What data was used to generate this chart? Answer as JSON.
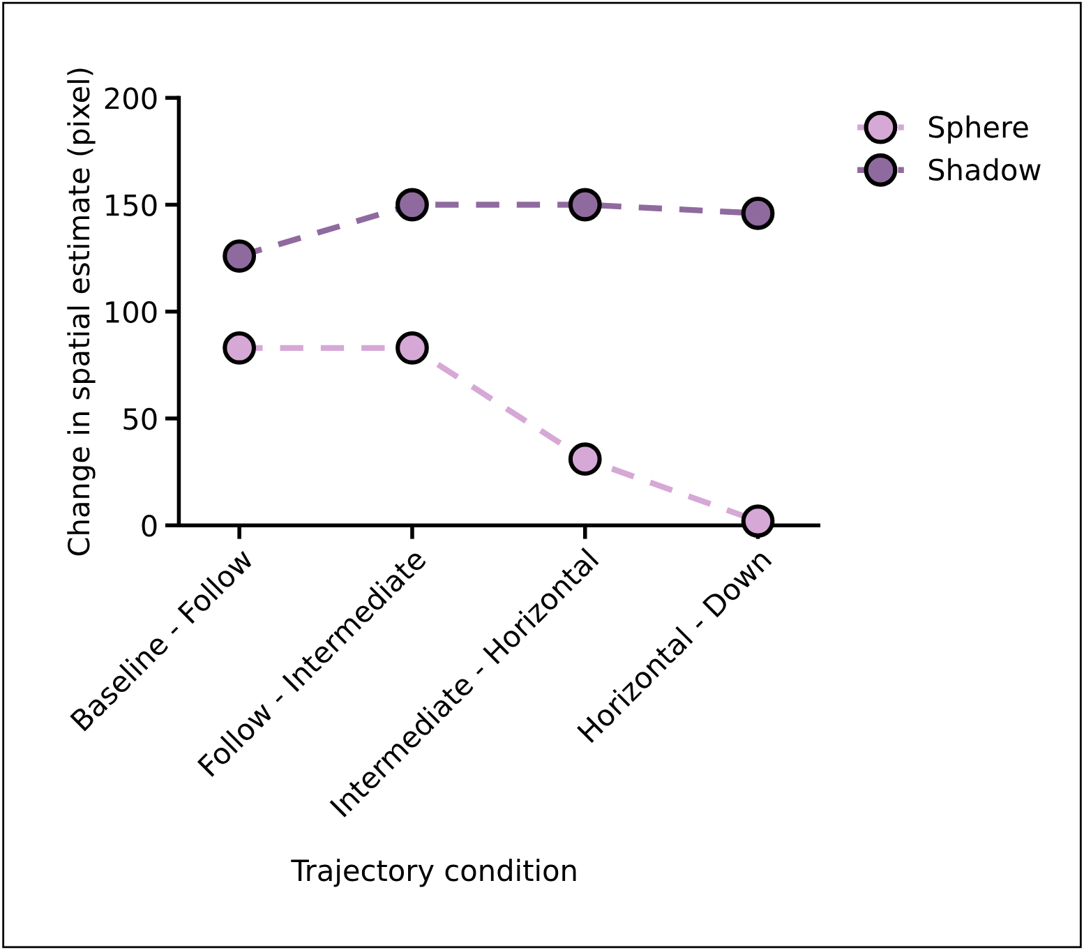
{
  "chart_data": {
    "type": "line",
    "xlabel": "Trajectory condition",
    "ylabel": "Change in spatial estimate (pixel)",
    "categories": [
      "Baseline - Follow",
      "Follow - Intermediate",
      "Intermediate - Horizontal",
      "Horizontal - Down"
    ],
    "series": [
      {
        "name": "Sphere",
        "color": "#d6a8d6",
        "values": [
          83,
          83,
          31,
          2
        ]
      },
      {
        "name": "Shadow",
        "color": "#8f6a9f",
        "values": [
          126,
          150,
          150,
          146
        ]
      }
    ],
    "ylim": [
      0,
      200
    ],
    "yticks": [
      0,
      50,
      100,
      150,
      200
    ],
    "grid": false,
    "legend": "top right",
    "marker": "circle",
    "line_style": "dashed"
  }
}
